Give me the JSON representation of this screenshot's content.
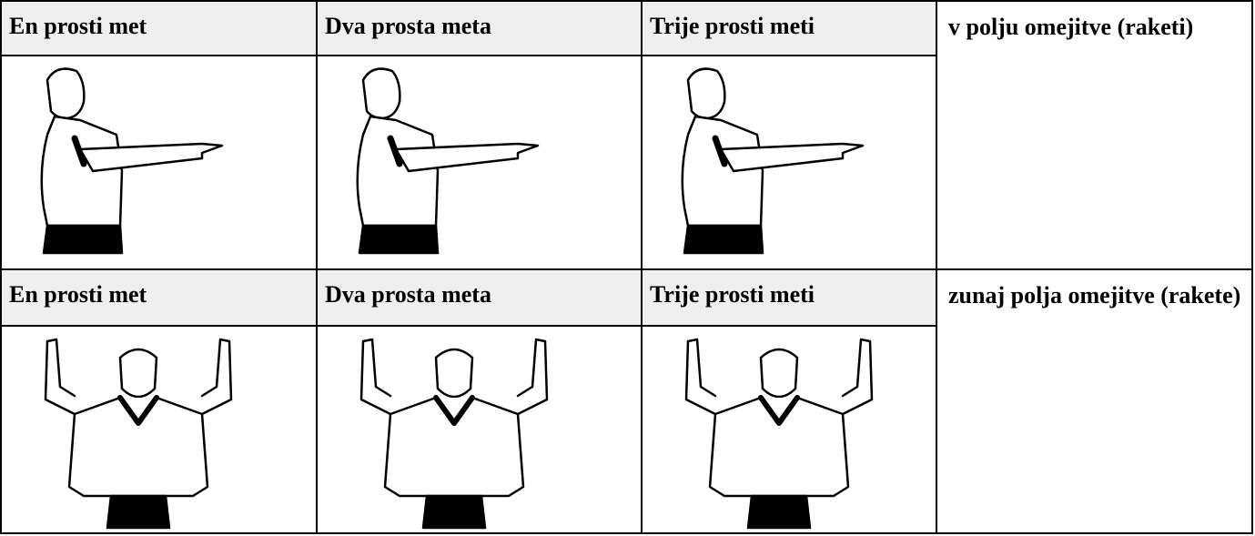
{
  "table": {
    "rows": [
      {
        "labels": [
          "En prosti met",
          "Dva prosta meta",
          "Trije prosti meti"
        ],
        "note": "v polju omejitve (raketi)"
      },
      {
        "labels": [
          "En prosti met",
          "Dva prosta meta",
          "Trije prosti meti"
        ],
        "note": "zunaj polja omejitve (rakete)"
      }
    ]
  }
}
